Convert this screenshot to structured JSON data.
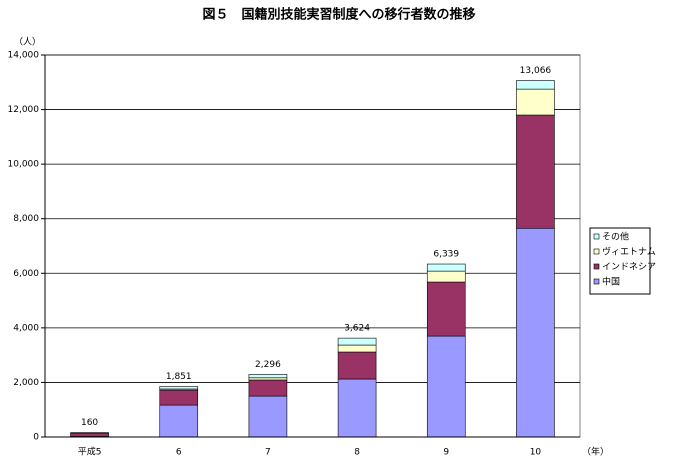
{
  "chart_data": {
    "type": "stacked_bar",
    "title": "図５　国籍別技能実習制度への移行者数の推移",
    "y_label": "（人）",
    "x_label": "（年）",
    "categories": [
      "平成5",
      "6",
      "7",
      "8",
      "9",
      "10"
    ],
    "series": [
      {
        "name": "中国",
        "color": "#9999ff",
        "values": [
          20,
          1170,
          1500,
          2125,
          3700,
          7650
        ]
      },
      {
        "name": "インドネシア",
        "color": "#993366",
        "values": [
          120,
          550,
          590,
          990,
          1980,
          4150
        ]
      },
      {
        "name": "ヴィエトナム",
        "color": "#ffffcc",
        "values": [
          0,
          40,
          80,
          255,
          400,
          950
        ]
      },
      {
        "name": "その他",
        "color": "#ccffff",
        "values": [
          20,
          91,
          126,
          254,
          259,
          316
        ]
      }
    ],
    "totals": [
      160,
      1851,
      2296,
      3624,
      6339,
      13066
    ],
    "total_labels": [
      "160",
      "1,851",
      "2,296",
      "3,624",
      "6,339",
      "13,066"
    ],
    "ylim": [
      0,
      14000
    ],
    "yticks": [
      0,
      {
        "value": 2000,
        "label": "2,000"
      },
      {
        "value": 4000,
        "label": "4,000"
      },
      {
        "value": 6000,
        "label": "6,000"
      },
      {
        "value": 8000,
        "label": "8,000"
      },
      {
        "value": 10000,
        "label": "10,000"
      },
      {
        "value": 12000,
        "label": "12,000"
      },
      {
        "value": 14000,
        "label": "14,000"
      }
    ],
    "grid": true,
    "legend": "right"
  }
}
